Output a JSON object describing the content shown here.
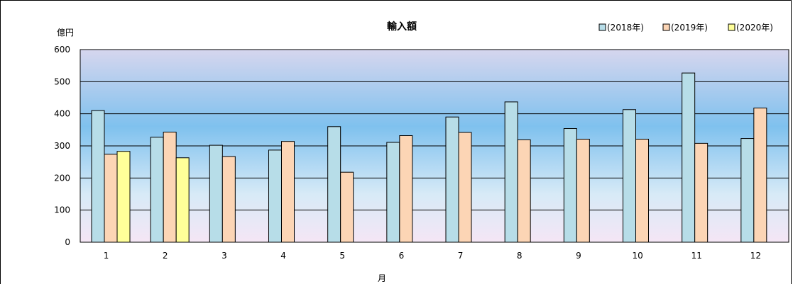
{
  "chart_data": {
    "type": "bar",
    "title": "輸入額",
    "ylabel": "億円",
    "xlabel": "月",
    "ylim": [
      0,
      600
    ],
    "yticks": [
      0,
      100,
      200,
      300,
      400,
      500,
      600
    ],
    "categories": [
      "1",
      "2",
      "3",
      "4",
      "5",
      "6",
      "7",
      "8",
      "9",
      "10",
      "11",
      "12"
    ],
    "grid": true,
    "legend_position": "top-right",
    "series": [
      {
        "name": "(2018年)",
        "color": "#b7dde8",
        "values": [
          410,
          327,
          302,
          287,
          360,
          311,
          390,
          437,
          354,
          413,
          527,
          323
        ]
      },
      {
        "name": "(2019年)",
        "color": "#fcd5b5",
        "values": [
          274,
          343,
          267,
          314,
          218,
          332,
          342,
          319,
          321,
          321,
          308,
          418
        ]
      },
      {
        "name": "(2020年)",
        "color": "#ffff99",
        "values": [
          283,
          263,
          null,
          null,
          null,
          null,
          null,
          null,
          null,
          null,
          null,
          null
        ]
      }
    ]
  }
}
